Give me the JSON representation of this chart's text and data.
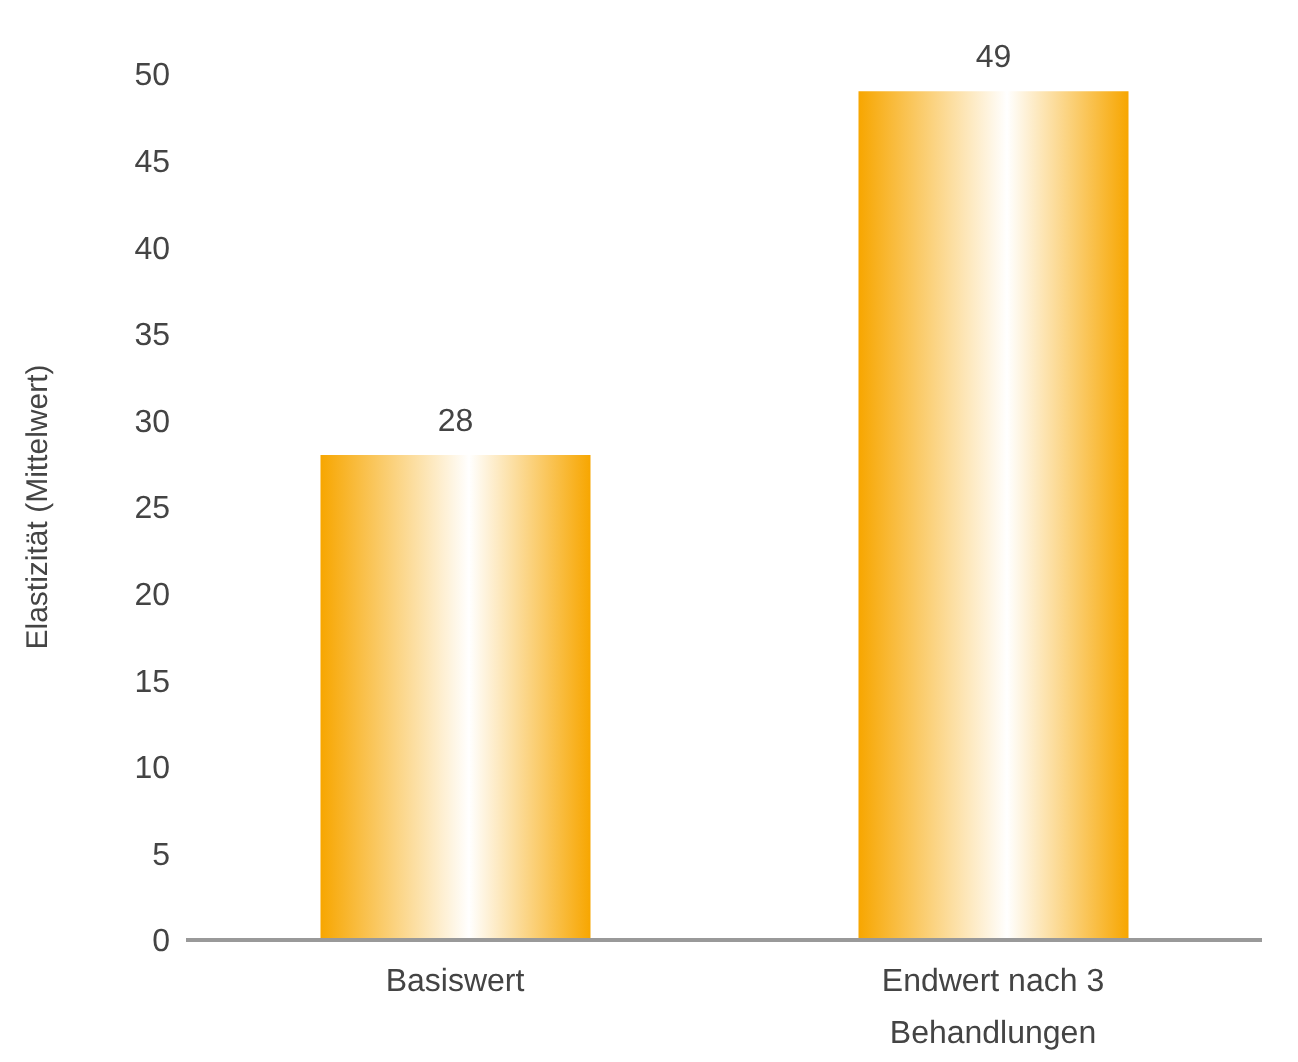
{
  "chart_data": {
    "type": "bar",
    "ylabel": "Elastizität (Mittelwert)",
    "categories": [
      "Basiswert",
      "Endwert nach 3 Behandlungen"
    ],
    "values": [
      28,
      49
    ],
    "color": "#f7a600",
    "ylim": [
      0,
      50
    ],
    "yticks": [
      0,
      5,
      10,
      15,
      20,
      25,
      30,
      35,
      40,
      45,
      50
    ],
    "data_labels": true
  }
}
